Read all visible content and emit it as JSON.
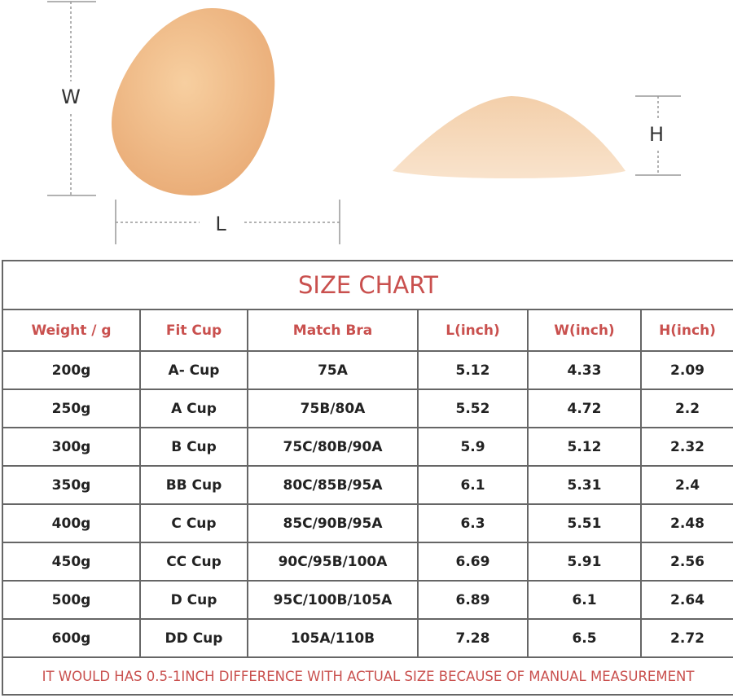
{
  "dimension_labels": {
    "width": "W",
    "length": "L",
    "height": "H"
  },
  "table": {
    "title": "SIZE CHART",
    "headers": [
      "Weight / g",
      "Fit Cup",
      "Match Bra",
      "L(inch)",
      "W(inch)",
      "H(inch)"
    ],
    "rows": [
      [
        "200g",
        "A- Cup",
        "75A",
        "5.12",
        "4.33",
        "2.09"
      ],
      [
        "250g",
        "A Cup",
        "75B/80A",
        "5.52",
        "4.72",
        "2.2"
      ],
      [
        "300g",
        "B Cup",
        "75C/80B/90A",
        "5.9",
        "5.12",
        "2.32"
      ],
      [
        "350g",
        "BB Cup",
        "80C/85B/95A",
        "6.1",
        "5.31",
        "2.4"
      ],
      [
        "400g",
        "C Cup",
        "85C/90B/95A",
        "6.3",
        "5.51",
        "2.48"
      ],
      [
        "450g",
        "CC Cup",
        "90C/95B/100A",
        "6.69",
        "5.91",
        "2.56"
      ],
      [
        "500g",
        "D Cup",
        "95C/100B/105A",
        "6.89",
        "6.1",
        "2.64"
      ],
      [
        "600g",
        "DD Cup",
        "105A/110B",
        "7.28",
        "6.5",
        "2.72"
      ]
    ],
    "note": "IT WOULD HAS 0.5-1INCH DIFFERENCE WITH ACTUAL SIZE BECAUSE OF MANUAL MEASUREMENT"
  }
}
